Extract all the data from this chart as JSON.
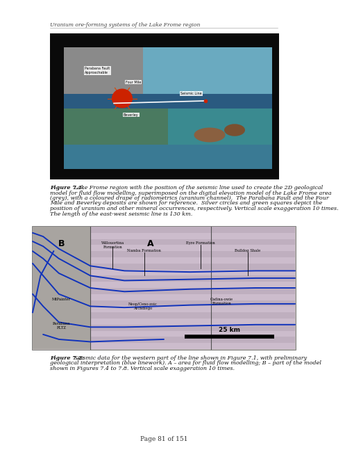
{
  "header_text": "Uranium ore-forming systems of the Lake Frome region",
  "footer_text": "Page 81 of 151",
  "fig1_caption_bold": "Figure 7.1:",
  "fig1_caption_rest": " Lake Frome region with the position of the seismic line used to create the 2D geological model for fluid flow modelling, superimposed on the digital elevation model of the Lake Frome area (grey), with a coloured drape of radiometrics (uranium channel).  The Parabana Fault and the Four Mile and Beverley deposits are shown for reference.  Silver circles and green squares depict the position of uranium and other mineral occurrences, respectively. Vertical scale exaggeration 10 times. The length of the east-west seismic line is 130 km.",
  "fig2_caption_bold": "Figure 7.2:",
  "fig2_caption_rest": " Seismic data for the western part of the line shown in Figure 7.1, with preliminary geological interpretation (blue linework). A – area for fluid flow modelling; B – part of the model shown in Figures 7.4 to 7.8. Vertical scale exaggeration 10 times.",
  "bg_color": "#ffffff",
  "header_fontsize": 5.5,
  "footer_fontsize": 6.5,
  "caption_fontsize": 5.8
}
